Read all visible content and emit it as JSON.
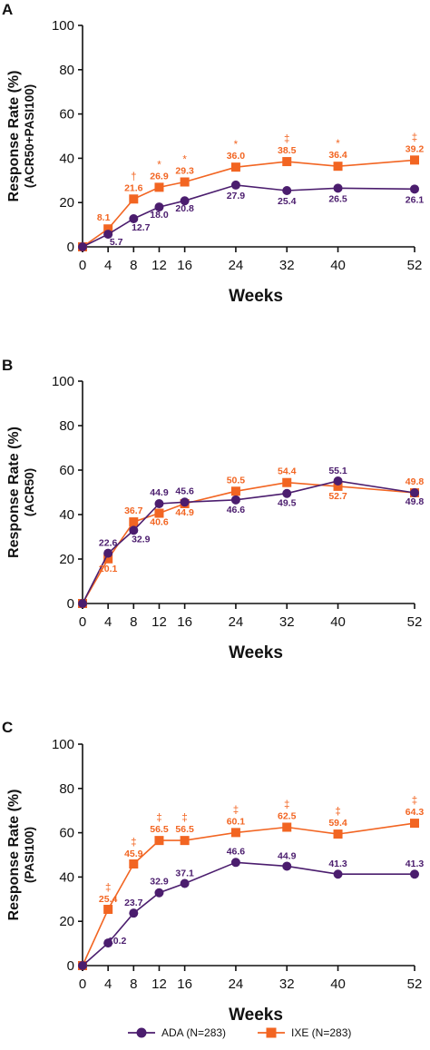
{
  "colors": {
    "ada": "#4b1d6e",
    "ixe": "#f26522"
  },
  "legend": {
    "ada": "ADA (N=283)",
    "ixe": "IXE (N=283)"
  },
  "chart_data": [
    {
      "type": "line",
      "panel": "A",
      "ylabel": "Response Rate (%)",
      "ylabel2": "(ACR50+PASI100)",
      "xlabel": "Weeks",
      "ylim": [
        0,
        100
      ],
      "yticks": [
        0,
        20,
        40,
        60,
        80,
        100
      ],
      "x": [
        0,
        4,
        8,
        12,
        16,
        24,
        32,
        40,
        52
      ],
      "series": [
        {
          "name": "ADA (N=283)",
          "values": [
            0,
            5.7,
            12.7,
            18.0,
            20.8,
            27.9,
            25.4,
            26.5,
            26.1
          ],
          "labels": [
            "",
            "5.7",
            "12.7",
            "18.0",
            "20.8",
            "27.9",
            "25.4",
            "26.5",
            "26.1"
          ]
        },
        {
          "name": "IXE (N=283)",
          "values": [
            0,
            8.1,
            21.6,
            26.9,
            29.3,
            36.0,
            38.5,
            36.4,
            39.2
          ],
          "labels": [
            "",
            "8.1",
            "21.6",
            "26.9",
            "29.3",
            "36.0",
            "38.5",
            "36.4",
            "39.2"
          ]
        }
      ],
      "significance": [
        "",
        "",
        "†",
        "*",
        "*",
        "*",
        "‡",
        "*",
        "‡"
      ]
    },
    {
      "type": "line",
      "panel": "B",
      "ylabel": "Response Rate (%)",
      "ylabel2": "(ACR50)",
      "xlabel": "Weeks",
      "ylim": [
        0,
        100
      ],
      "yticks": [
        0,
        20,
        40,
        60,
        80,
        100
      ],
      "x": [
        0,
        4,
        8,
        12,
        16,
        24,
        32,
        40,
        52
      ],
      "series": [
        {
          "name": "ADA (N=283)",
          "values": [
            0,
            22.6,
            32.9,
            44.9,
            45.6,
            46.6,
            49.5,
            55.1,
            49.8
          ],
          "labels": [
            "",
            "22.6",
            "32.9",
            "44.9",
            "45.6",
            "46.6",
            "49.5",
            "55.1",
            "49.8"
          ]
        },
        {
          "name": "IXE (N=283)",
          "values": [
            0,
            20.1,
            36.7,
            40.6,
            44.9,
            50.5,
            54.4,
            52.7,
            49.8
          ],
          "labels": [
            "",
            "20.1",
            "36.7",
            "40.6",
            "44.9",
            "50.5",
            "54.4",
            "52.7",
            "49.8"
          ]
        }
      ],
      "significance": [
        "",
        "",
        "",
        "",
        "",
        "",
        "",
        "",
        ""
      ]
    },
    {
      "type": "line",
      "panel": "C",
      "ylabel": "Response Rate (%)",
      "ylabel2": "(PASI100)",
      "xlabel": "Weeks",
      "ylim": [
        0,
        100
      ],
      "yticks": [
        0,
        20,
        40,
        60,
        80,
        100
      ],
      "x": [
        0,
        4,
        8,
        12,
        16,
        24,
        32,
        40,
        52
      ],
      "series": [
        {
          "name": "ADA (N=283)",
          "values": [
            0,
            10.2,
            23.7,
            32.9,
            37.1,
            46.6,
            44.9,
            41.3,
            41.3
          ],
          "labels": [
            "",
            "10.2",
            "23.7",
            "32.9",
            "37.1",
            "46.6",
            "44.9",
            "41.3",
            "41.3"
          ]
        },
        {
          "name": "IXE (N=283)",
          "values": [
            0,
            25.4,
            45.9,
            56.5,
            56.5,
            60.1,
            62.5,
            59.4,
            64.3
          ],
          "labels": [
            "",
            "25.4",
            "45.9",
            "56.5",
            "56.5",
            "60.1",
            "62.5",
            "59.4",
            "64.3"
          ]
        }
      ],
      "significance": [
        "",
        "‡",
        "‡",
        "‡",
        "‡",
        "‡",
        "‡",
        "‡",
        "‡"
      ]
    }
  ]
}
